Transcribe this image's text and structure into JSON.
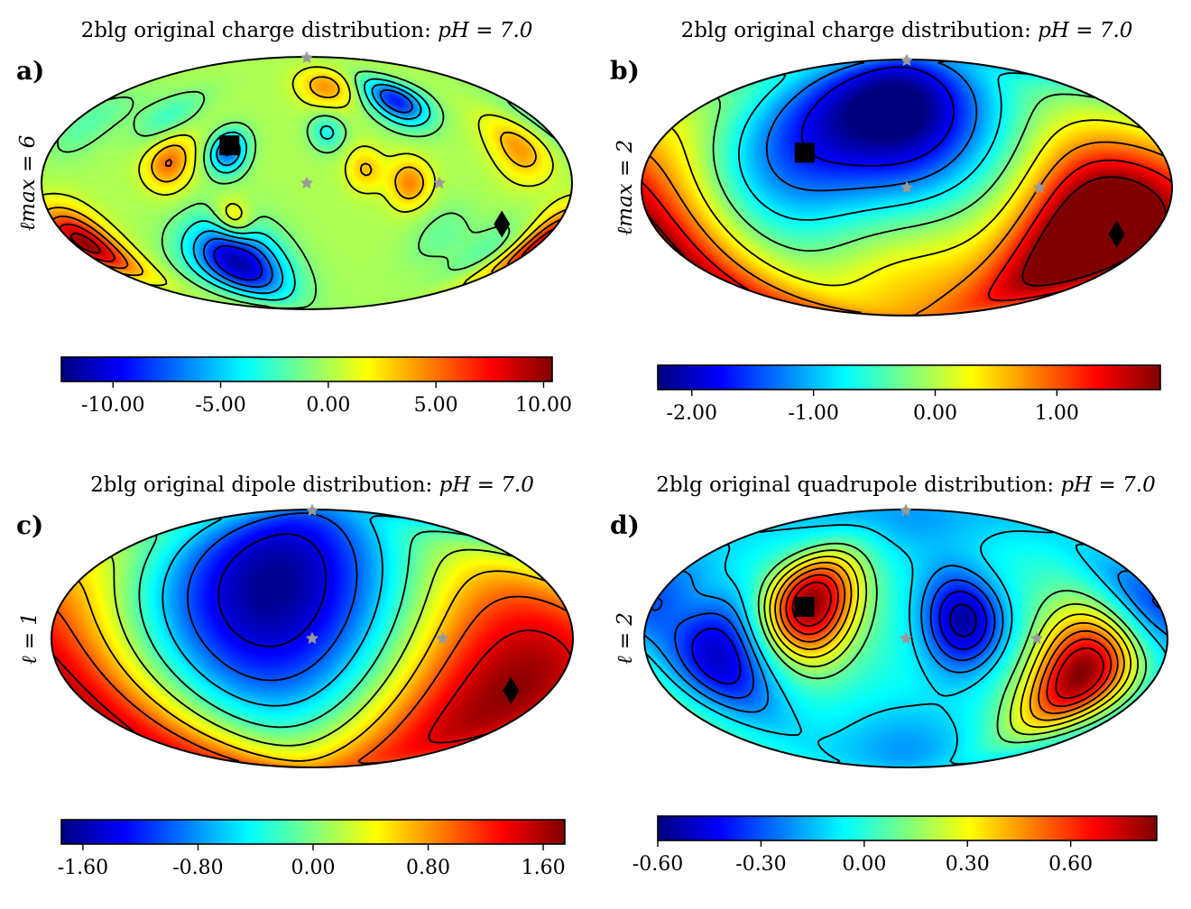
{
  "figure": {
    "palette": [
      "#00007f",
      "#0000ff",
      "#007fff",
      "#00ffff",
      "#7fff7f",
      "#ffff00",
      "#ff7f00",
      "#ff0000",
      "#7f0000"
    ],
    "marker_color_star": "#999999",
    "marker_color_symbol": "#000000"
  },
  "chart_data": [
    {
      "id": "a",
      "type": "heatmap",
      "projection": "mollweide",
      "panel_label": "a)",
      "title_prefix": "2blg original charge distribution:",
      "title_var": "pH = 7.0",
      "ylabel": "ℓmax = 6",
      "colorbar": {
        "min": -12.4,
        "max": 10.4,
        "ticks": [
          -10,
          -5,
          0,
          5,
          10
        ],
        "tick_labels": [
          "-10.00",
          "-5.00",
          "0.00",
          "5.00",
          "10.00"
        ]
      },
      "features": [
        {
          "lon": -172,
          "lat": -36,
          "amp": 10.2,
          "sigma": 14
        },
        {
          "lon": -60,
          "lat": -48,
          "amp": -11.5,
          "sigma": 18
        },
        {
          "lon": -95,
          "lat": 12,
          "amp": 5.2,
          "sigma": 11
        },
        {
          "lon": -52,
          "lat": -22,
          "amp": 4.6,
          "sigma": 9
        },
        {
          "lon": 70,
          "lat": 0,
          "amp": 4.6,
          "sigma": 10
        },
        {
          "lon": 40,
          "lat": 8,
          "amp": 3.2,
          "sigma": 9
        },
        {
          "lon": 150,
          "lat": 20,
          "amp": 4.2,
          "sigma": 13
        },
        {
          "lon": 20,
          "lat": 60,
          "amp": 4.2,
          "sigma": 10
        },
        {
          "lon": 80,
          "lat": 50,
          "amp": -9.0,
          "sigma": 11
        },
        {
          "lon": -55,
          "lat": 18,
          "amp": -7.2,
          "sigma": 9
        },
        {
          "lon": 15,
          "lat": 30,
          "amp": -3.5,
          "sigma": 8
        },
        {
          "lon": -110,
          "lat": 40,
          "amp": -2.5,
          "sigma": 12
        },
        {
          "lon": -170,
          "lat": 35,
          "amp": -2.0,
          "sigma": 15
        },
        {
          "lon": 150,
          "lat": -40,
          "amp": -2.2,
          "sigma": 14
        },
        {
          "lon": 100,
          "lat": -30,
          "amp": -1.5,
          "sigma": 14
        }
      ],
      "contour_levels": [
        -9,
        -7,
        -5,
        -3,
        -1,
        1,
        3,
        5,
        7,
        9
      ],
      "markers": [
        {
          "shape": "square",
          "lon": -55,
          "lat": 22
        },
        {
          "shape": "diamond",
          "lon": 140,
          "lat": -24
        },
        {
          "shape": "star",
          "lon": -1,
          "lat": 90
        },
        {
          "shape": "star",
          "lon": 0,
          "lat": 0
        },
        {
          "shape": "star",
          "lon": 90,
          "lat": 0
        }
      ]
    },
    {
      "id": "b",
      "type": "heatmap",
      "projection": "mollweide",
      "panel_label": "b)",
      "title_prefix": "2blg original charge distribution:",
      "title_var": "pH = 7.0",
      "ylabel": "ℓmax = 2",
      "colorbar": {
        "min": -2.28,
        "max": 1.85,
        "ticks": [
          -2,
          -1,
          0,
          1
        ],
        "tick_labels": [
          "-2.00",
          "-1.00",
          "0.00",
          "1.00"
        ]
      },
      "features": [
        {
          "lon": 0,
          "lat": 45,
          "amp": -2.2,
          "sigma": 38
        },
        {
          "lon": -80,
          "lat": 20,
          "amp": -1.2,
          "sigma": 40
        },
        {
          "lon": 130,
          "lat": -25,
          "amp": 2.4,
          "sigma": 32
        },
        {
          "lon": -175,
          "lat": -20,
          "amp": 1.0,
          "sigma": 35
        },
        {
          "lon": 0,
          "lat": -60,
          "amp": 0.5,
          "sigma": 35
        }
      ],
      "contour_levels": [
        -1.75,
        -1.25,
        -0.75,
        -0.25,
        0.25,
        0.75,
        1.25,
        1.75
      ],
      "markers": [
        {
          "shape": "square",
          "lon": -72,
          "lat": 20
        },
        {
          "shape": "diamond",
          "lon": 153,
          "lat": -27
        },
        {
          "shape": "star",
          "lon": -1,
          "lat": 90
        },
        {
          "shape": "star",
          "lon": 0,
          "lat": 0
        },
        {
          "shape": "star",
          "lon": 90,
          "lat": 0
        }
      ]
    },
    {
      "id": "c",
      "type": "heatmap",
      "projection": "mollweide",
      "panel_label": "c)",
      "title_prefix": "2blg original dipole distribution:",
      "title_var": "pH = 7.0",
      "ylabel": "ℓ = 1",
      "colorbar": {
        "min": -1.75,
        "max": 1.75,
        "ticks": [
          -1.6,
          -0.8,
          0,
          0.8,
          1.6
        ],
        "tick_labels": [
          "-1.60",
          "-0.80",
          "0.00",
          "0.80",
          "1.60"
        ]
      },
      "dipole": {
        "amp": 1.7,
        "lon": 150,
        "lat": -30
      },
      "contour_levels": [
        -1.4,
        -1.0,
        -0.6,
        -0.2,
        0.2,
        0.6,
        1.0,
        1.4
      ],
      "markers": [
        {
          "shape": "diamond",
          "lon": 150,
          "lat": -30
        },
        {
          "shape": "star",
          "lon": -1,
          "lat": 90
        },
        {
          "shape": "star",
          "lon": 0,
          "lat": 0
        },
        {
          "shape": "star",
          "lon": 90,
          "lat": 0
        }
      ]
    },
    {
      "id": "d",
      "type": "heatmap",
      "projection": "mollweide",
      "panel_label": "d)",
      "title_prefix": "2blg original quadrupole distribution:",
      "title_var": "pH = 7.0",
      "ylabel": "ℓ = 2",
      "colorbar": {
        "min": -0.6,
        "max": 0.85,
        "ticks": [
          -0.6,
          -0.3,
          0,
          0.3,
          0.6
        ],
        "tick_labels": [
          "-0.60",
          "-0.30",
          "0.00",
          "0.30",
          "0.60"
        ]
      },
      "features": [
        {
          "lon": -68,
          "lat": 20,
          "amp": 0.85,
          "sigma": 22
        },
        {
          "lon": 125,
          "lat": -20,
          "amp": 0.85,
          "sigma": 24
        },
        {
          "lon": 40,
          "lat": 10,
          "amp": -0.55,
          "sigma": 20
        },
        {
          "lon": -130,
          "lat": -10,
          "amp": -0.5,
          "sigma": 24
        },
        {
          "lon": 175,
          "lat": 20,
          "amp": -0.3,
          "sigma": 20
        },
        {
          "lon": 0,
          "lat": -70,
          "amp": -0.2,
          "sigma": 25
        },
        {
          "lon": 0,
          "lat": 80,
          "amp": -0.2,
          "sigma": 25
        }
      ],
      "contour_levels": [
        -0.5,
        -0.4,
        -0.3,
        -0.2,
        -0.1,
        0.1,
        0.2,
        0.3,
        0.4,
        0.5,
        0.6,
        0.7
      ],
      "markers": [
        {
          "shape": "square",
          "lon": -72,
          "lat": 18
        },
        {
          "shape": "star",
          "lon": -1,
          "lat": 90
        },
        {
          "shape": "star",
          "lon": 0,
          "lat": 0
        },
        {
          "shape": "star",
          "lon": 90,
          "lat": 0
        }
      ]
    }
  ]
}
